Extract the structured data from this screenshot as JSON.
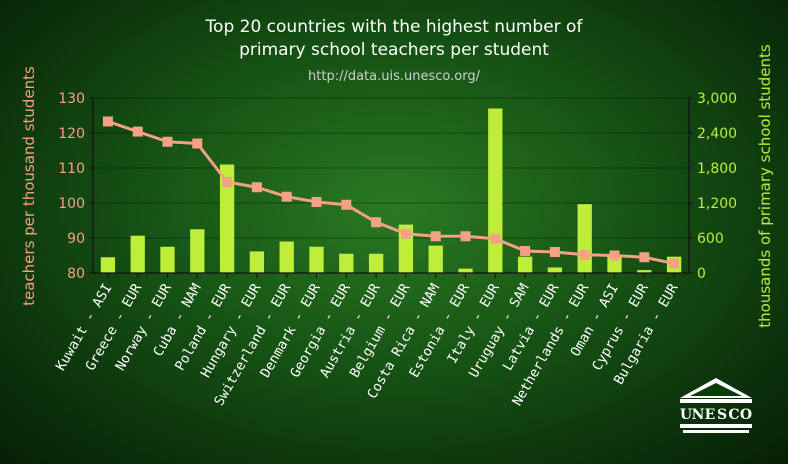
{
  "chart_data": {
    "type": "bar+line",
    "title_line1": "Top 20 countries with the highest number of",
    "title_line2": "primary school teachers per student",
    "subtitle": "http://data.uis.unesco.org/",
    "ylabel_left": "teachers per thousand students",
    "ylabel_right": "thousands of primary school students",
    "logo_text": "UNESCO",
    "categories": [
      "Kuwait - ASI",
      "Greece - EUR",
      "Norway - EUR",
      "Cuba - NAM",
      "Poland - EUR",
      "Hungary - EUR",
      "Switzerland - EUR",
      "Denmark - EUR",
      "Georgia - EUR",
      "Austria - EUR",
      "Belgium - EUR",
      "Costa Rica - NAM",
      "Estonia - EUR",
      "Italy - EUR",
      "Uruguay - SAM",
      "Latvia - EUR",
      "Netherlands - EUR",
      "Oman - ASI",
      "Cyprus - EUR",
      "Bulgaria - EUR"
    ],
    "series": [
      {
        "name": "teachers per thousand students",
        "type": "line",
        "axis": "left",
        "values": [
          123.3,
          120.4,
          117.5,
          117.0,
          106.0,
          104.5,
          101.8,
          100.3,
          99.5,
          94.5,
          91.2,
          90.5,
          90.5,
          89.8,
          86.3,
          86.0,
          85.2,
          85.0,
          84.5,
          82.7
        ]
      },
      {
        "name": "thousands of primary school students",
        "type": "bar",
        "axis": "right",
        "values": [
          270,
          640,
          450,
          750,
          1860,
          370,
          540,
          450,
          330,
          330,
          830,
          470,
          75,
          2820,
          280,
          95,
          1180,
          310,
          50,
          280
        ]
      }
    ],
    "ylim_left": [
      80,
      130
    ],
    "ylim_right": [
      0,
      3000
    ],
    "yticks_left": [
      "80",
      "90",
      "100",
      "110",
      "120",
      "130"
    ],
    "yticks_right": [
      "0",
      "600",
      "1,200",
      "1,800",
      "2,400",
      "3,000"
    ],
    "colors": {
      "bars": "#bfee3a",
      "line": "#f4a184",
      "left_axis": "#f4a184",
      "right_axis": "#bfee3a",
      "text": "#ffffff",
      "subtitle": "#d0d0d0"
    }
  }
}
